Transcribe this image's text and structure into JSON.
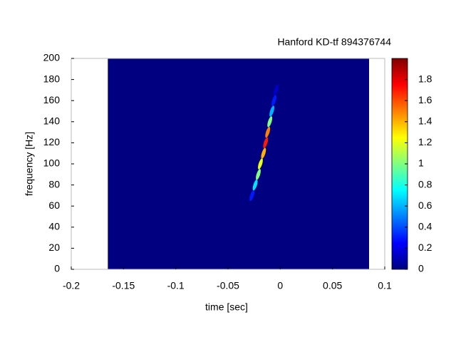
{
  "chart_data": {
    "type": "heatmap",
    "title": "Hanford KD-tf 894376744",
    "x_label": "time [sec]",
    "y_label": "frequency [Hz]",
    "xlim": [
      -0.2,
      0.1
    ],
    "xticks": [
      -0.2,
      -0.15,
      -0.1,
      -0.05,
      0,
      0.05,
      0.1
    ],
    "ylim": [
      0,
      200
    ],
    "yticks": [
      0,
      20,
      40,
      60,
      80,
      100,
      120,
      140,
      160,
      180,
      200
    ],
    "data_xlim": [
      -0.165,
      0.085
    ],
    "colormap": "jet",
    "clim": [
      0,
      2
    ],
    "cticks": [
      0,
      0.2,
      0.4,
      0.6,
      0.8,
      1,
      1.2,
      1.4,
      1.6,
      1.8
    ],
    "background_value": 0,
    "x": [
      -0.027,
      -0.024,
      -0.021,
      -0.019,
      -0.016,
      -0.014,
      -0.012,
      -0.01,
      -0.008,
      -0.006,
      -0.004
    ],
    "y": [
      70,
      80,
      90,
      100,
      110,
      120,
      130,
      140,
      150,
      160,
      170
    ],
    "values": [
      0.3,
      0.7,
      1.0,
      1.2,
      1.4,
      1.7,
      1.5,
      1.0,
      0.6,
      0.3,
      0.15
    ]
  }
}
